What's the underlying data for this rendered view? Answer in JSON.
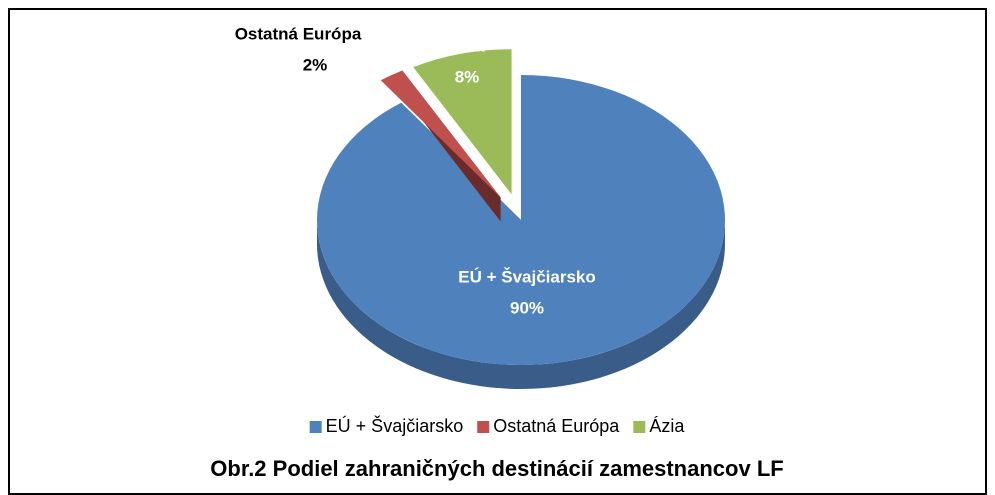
{
  "chart_data": {
    "type": "pie",
    "title": "Obr.2 Podiel zahraničných destinácií zamestnancov LF",
    "categories": [
      "EÚ + Švajčiarsko",
      "Ostatná Európa",
      "Ázia"
    ],
    "values": [
      90,
      2,
      8
    ],
    "value_labels": [
      "90%",
      "2%",
      "8%"
    ],
    "colors": [
      "#4f81bd",
      "#c0504d",
      "#9bbb59"
    ],
    "legend": "bottom"
  }
}
